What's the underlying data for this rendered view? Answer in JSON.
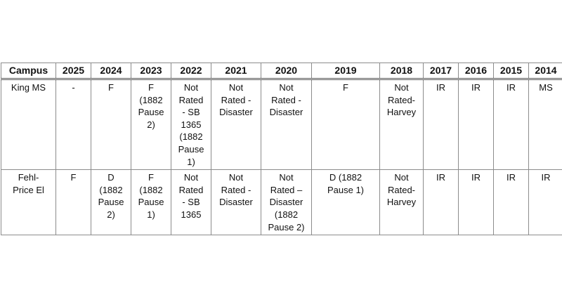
{
  "table": {
    "headers": [
      "Campus",
      "2025",
      "2024",
      "2023",
      "2022",
      "2021",
      "2020",
      "2019",
      "2018",
      "2017",
      "2016",
      "2015",
      "2014"
    ],
    "rows": [
      {
        "cells": [
          "King MS",
          "-",
          "F",
          "F\n(1882\nPause\n2)",
          "Not\nRated\n- SB\n1365\n(1882\nPause\n1)",
          "Not\nRated -\nDisaster",
          "Not\nRated -\nDisaster",
          "F",
          "Not\nRated-\nHarvey",
          "IR",
          "IR",
          "IR",
          "MS"
        ]
      },
      {
        "cells": [
          "Fehl-\nPrice El",
          "F",
          "D\n(1882\nPause\n2)",
          "F\n(1882\nPause\n1)",
          "Not\nRated\n- SB\n1365",
          "Not\nRated -\nDisaster",
          "Not\nRated –\nDisaster\n(1882\nPause 2)",
          "D (1882\nPause 1)",
          "Not\nRated-\nHarvey",
          "IR",
          "IR",
          "IR",
          "IR"
        ]
      }
    ]
  }
}
